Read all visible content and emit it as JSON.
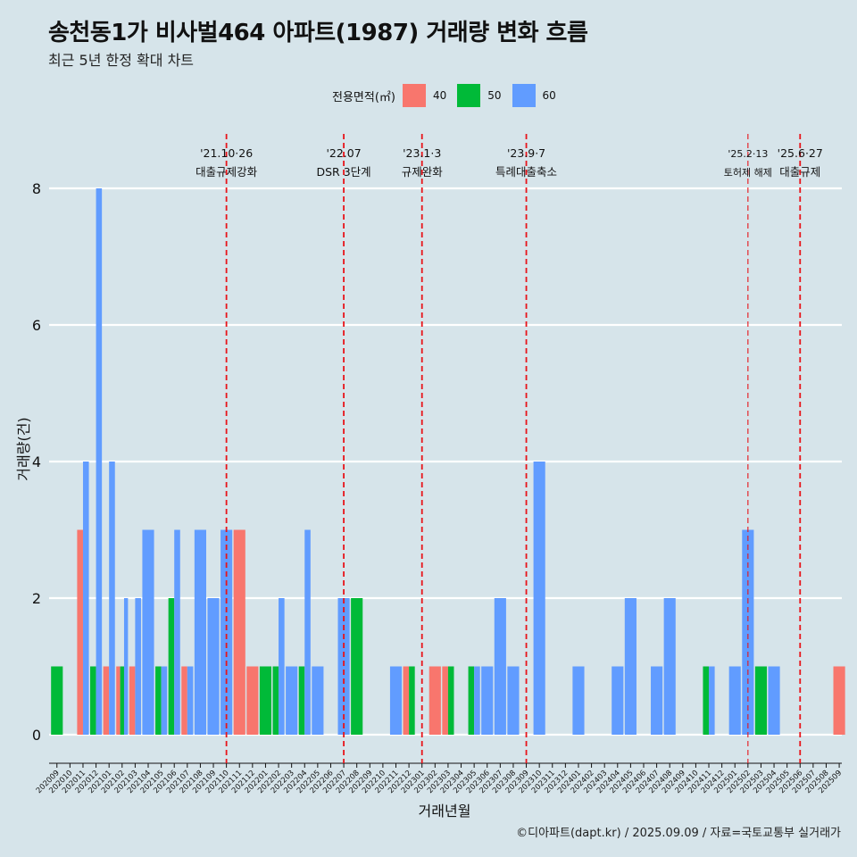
{
  "header": {
    "title": "송천동1가 비사벌464 아파트(1987) 거래량 변화 흐름",
    "subtitle": "최근 5년 한정 확대 차트"
  },
  "legend": {
    "title": "전용면적(㎡)",
    "items": [
      {
        "label": "40",
        "color": "#f8766d"
      },
      {
        "label": "50",
        "color": "#00ba38"
      },
      {
        "label": "60",
        "color": "#619cff"
      }
    ]
  },
  "caption": "©디아파트(dapt.kr) / 2025.09.09 / 자료=국토교통부 실거래가",
  "chart_data": {
    "type": "bar",
    "xlabel": "거래년월",
    "ylabel": "거래량(건)",
    "ylim": [
      0,
      8
    ],
    "yticks": [
      0,
      2,
      4,
      6,
      8
    ],
    "grid": "horizontal",
    "categories": [
      "202009",
      "202010",
      "202011",
      "202012",
      "202101",
      "202102",
      "202103",
      "202104",
      "202105",
      "202106",
      "202107",
      "202108",
      "202109",
      "202110",
      "202111",
      "202112",
      "202201",
      "202202",
      "202203",
      "202204",
      "202205",
      "202206",
      "202207",
      "202208",
      "202209",
      "202210",
      "202211",
      "202212",
      "202301",
      "202302",
      "202303",
      "202304",
      "202305",
      "202306",
      "202307",
      "202308",
      "202309",
      "202310",
      "202311",
      "202312",
      "202401",
      "202402",
      "202403",
      "202404",
      "202405",
      "202406",
      "202407",
      "202408",
      "202409",
      "202410",
      "202411",
      "202412",
      "202501",
      "202502",
      "202503",
      "202504",
      "202505",
      "202506",
      "202507",
      "202508",
      "202509"
    ],
    "series": [
      {
        "name": "40",
        "color": "#f8766d",
        "values": [
          0,
          0,
          3,
          0,
          1,
          1,
          1,
          0,
          0,
          0,
          1,
          0,
          0,
          0,
          3,
          1,
          0,
          0,
          0,
          0,
          0,
          0,
          0,
          0,
          0,
          0,
          0,
          1,
          0,
          1,
          1,
          0,
          0,
          0,
          0,
          0,
          0,
          0,
          0,
          0,
          0,
          0,
          0,
          0,
          0,
          0,
          0,
          0,
          0,
          0,
          0,
          0,
          0,
          0,
          0,
          0,
          0,
          0,
          0,
          0,
          1
        ]
      },
      {
        "name": "50",
        "color": "#00ba38",
        "values": [
          1,
          0,
          0,
          1,
          0,
          1,
          0,
          0,
          1,
          2,
          0,
          0,
          0,
          0,
          0,
          0,
          1,
          1,
          0,
          1,
          0,
          0,
          0,
          2,
          0,
          0,
          0,
          1,
          0,
          0,
          1,
          0,
          1,
          0,
          0,
          0,
          0,
          0,
          0,
          0,
          0,
          0,
          0,
          0,
          0,
          0,
          0,
          0,
          0,
          0,
          1,
          0,
          0,
          0,
          1,
          0,
          0,
          0,
          0,
          0,
          0
        ]
      },
      {
        "name": "60",
        "color": "#619cff",
        "values": [
          0,
          0,
          4,
          8,
          4,
          2,
          2,
          3,
          1,
          3,
          1,
          3,
          2,
          3,
          0,
          0,
          0,
          2,
          1,
          3,
          1,
          0,
          2,
          0,
          0,
          0,
          1,
          0,
          0,
          0,
          0,
          0,
          1,
          1,
          2,
          1,
          0,
          4,
          0,
          0,
          1,
          0,
          0,
          1,
          2,
          0,
          1,
          2,
          0,
          0,
          1,
          0,
          1,
          3,
          0,
          1,
          0,
          0,
          0,
          0,
          0
        ]
      }
    ],
    "annotations": [
      {
        "date": "202110",
        "line1": "'21.10·26",
        "line2": "대출규제강화",
        "style": "dashed"
      },
      {
        "date": "202207",
        "line1": "'22.07",
        "line2": "DSR 3단계",
        "style": "dashed"
      },
      {
        "date": "202301",
        "line1": "'23.1·3",
        "line2": "규제완화",
        "style": "dashed"
      },
      {
        "date": "202309",
        "line1": "'23.9·7",
        "line2": "특례대출축소",
        "style": "dashed"
      },
      {
        "date": "202502",
        "line1": "'25.2·13",
        "line2": "토허제 해제",
        "style": "dashed-thin"
      },
      {
        "date": "202506",
        "line1": "'25.6·27",
        "line2": "대출규제",
        "style": "dashed"
      }
    ]
  }
}
